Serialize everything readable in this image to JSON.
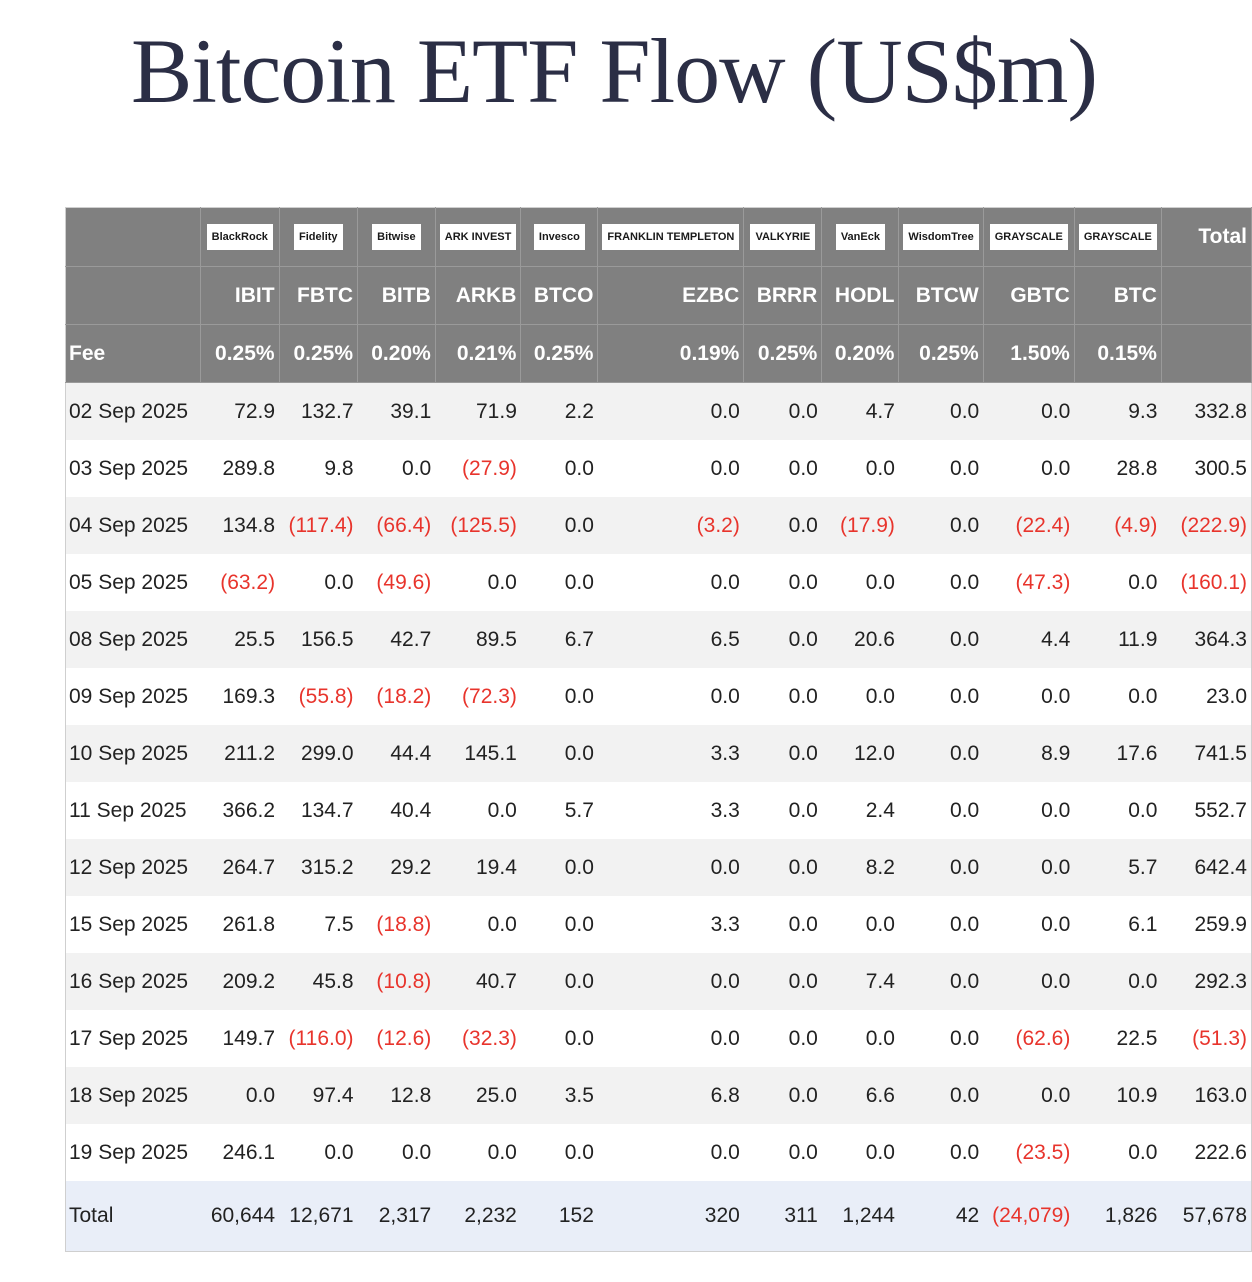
{
  "title": "Bitcoin ETF Flow (US$m)",
  "chart_data": {
    "type": "table",
    "title": "Bitcoin ETF Flow (US$m)",
    "issuers": [
      "BlackRock",
      "Fidelity",
      "Bitwise",
      "ARK INVEST",
      "Invesco",
      "FRANKLIN TEMPLETON",
      "VALKYRIE",
      "VanEck",
      "WisdomTree",
      "GRAYSCALE",
      "GRAYSCALE"
    ],
    "total_header": "Total",
    "tickers": [
      "IBIT",
      "FBTC",
      "BITB",
      "ARKB",
      "BTCO",
      "EZBC",
      "BRRR",
      "HODL",
      "BTCW",
      "GBTC",
      "BTC"
    ],
    "fee_label": "Fee",
    "fees": [
      "0.25%",
      "0.25%",
      "0.20%",
      "0.21%",
      "0.25%",
      "0.19%",
      "0.25%",
      "0.20%",
      "0.25%",
      "1.50%",
      "0.15%"
    ],
    "rows": [
      {
        "date": "02 Sep 2025",
        "values": [
          "72.9",
          "132.7",
          "39.1",
          "71.9",
          "2.2",
          "0.0",
          "0.0",
          "4.7",
          "0.0",
          "0.0",
          "9.3",
          "332.8"
        ]
      },
      {
        "date": "03 Sep 2025",
        "values": [
          "289.8",
          "9.8",
          "0.0",
          "(27.9)",
          "0.0",
          "0.0",
          "0.0",
          "0.0",
          "0.0",
          "0.0",
          "28.8",
          "300.5"
        ]
      },
      {
        "date": "04 Sep 2025",
        "values": [
          "134.8",
          "(117.4)",
          "(66.4)",
          "(125.5)",
          "0.0",
          "(3.2)",
          "0.0",
          "(17.9)",
          "0.0",
          "(22.4)",
          "(4.9)",
          "(222.9)"
        ]
      },
      {
        "date": "05 Sep 2025",
        "values": [
          "(63.2)",
          "0.0",
          "(49.6)",
          "0.0",
          "0.0",
          "0.0",
          "0.0",
          "0.0",
          "0.0",
          "(47.3)",
          "0.0",
          "(160.1)"
        ]
      },
      {
        "date": "08 Sep 2025",
        "values": [
          "25.5",
          "156.5",
          "42.7",
          "89.5",
          "6.7",
          "6.5",
          "0.0",
          "20.6",
          "0.0",
          "4.4",
          "11.9",
          "364.3"
        ]
      },
      {
        "date": "09 Sep 2025",
        "values": [
          "169.3",
          "(55.8)",
          "(18.2)",
          "(72.3)",
          "0.0",
          "0.0",
          "0.0",
          "0.0",
          "0.0",
          "0.0",
          "0.0",
          "23.0"
        ]
      },
      {
        "date": "10 Sep 2025",
        "values": [
          "211.2",
          "299.0",
          "44.4",
          "145.1",
          "0.0",
          "3.3",
          "0.0",
          "12.0",
          "0.0",
          "8.9",
          "17.6",
          "741.5"
        ]
      },
      {
        "date": "11 Sep 2025",
        "values": [
          "366.2",
          "134.7",
          "40.4",
          "0.0",
          "5.7",
          "3.3",
          "0.0",
          "2.4",
          "0.0",
          "0.0",
          "0.0",
          "552.7"
        ]
      },
      {
        "date": "12 Sep 2025",
        "values": [
          "264.7",
          "315.2",
          "29.2",
          "19.4",
          "0.0",
          "0.0",
          "0.0",
          "8.2",
          "0.0",
          "0.0",
          "5.7",
          "642.4"
        ]
      },
      {
        "date": "15 Sep 2025",
        "values": [
          "261.8",
          "7.5",
          "(18.8)",
          "0.0",
          "0.0",
          "3.3",
          "0.0",
          "0.0",
          "0.0",
          "0.0",
          "6.1",
          "259.9"
        ]
      },
      {
        "date": "16 Sep 2025",
        "values": [
          "209.2",
          "45.8",
          "(10.8)",
          "40.7",
          "0.0",
          "0.0",
          "0.0",
          "7.4",
          "0.0",
          "0.0",
          "0.0",
          "292.3"
        ]
      },
      {
        "date": "17 Sep 2025",
        "values": [
          "149.7",
          "(116.0)",
          "(12.6)",
          "(32.3)",
          "0.0",
          "0.0",
          "0.0",
          "0.0",
          "0.0",
          "(62.6)",
          "22.5",
          "(51.3)"
        ]
      },
      {
        "date": "18 Sep 2025",
        "values": [
          "0.0",
          "97.4",
          "12.8",
          "25.0",
          "3.5",
          "6.8",
          "0.0",
          "6.6",
          "0.0",
          "0.0",
          "10.9",
          "163.0"
        ]
      },
      {
        "date": "19 Sep 2025",
        "values": [
          "246.1",
          "0.0",
          "0.0",
          "0.0",
          "0.0",
          "0.0",
          "0.0",
          "0.0",
          "0.0",
          "(23.5)",
          "0.0",
          "222.6"
        ]
      }
    ],
    "total_row": {
      "label": "Total",
      "values": [
        "60,644",
        "12,671",
        "2,317",
        "2,232",
        "152",
        "320",
        "311",
        "1,244",
        "42",
        "(24,079)",
        "1,826",
        "57,678"
      ]
    }
  },
  "colors": {
    "header_bg": "#808080",
    "negative": "#e8342c",
    "total_row_bg": "#e9eef8",
    "title": "#2b2e45"
  }
}
